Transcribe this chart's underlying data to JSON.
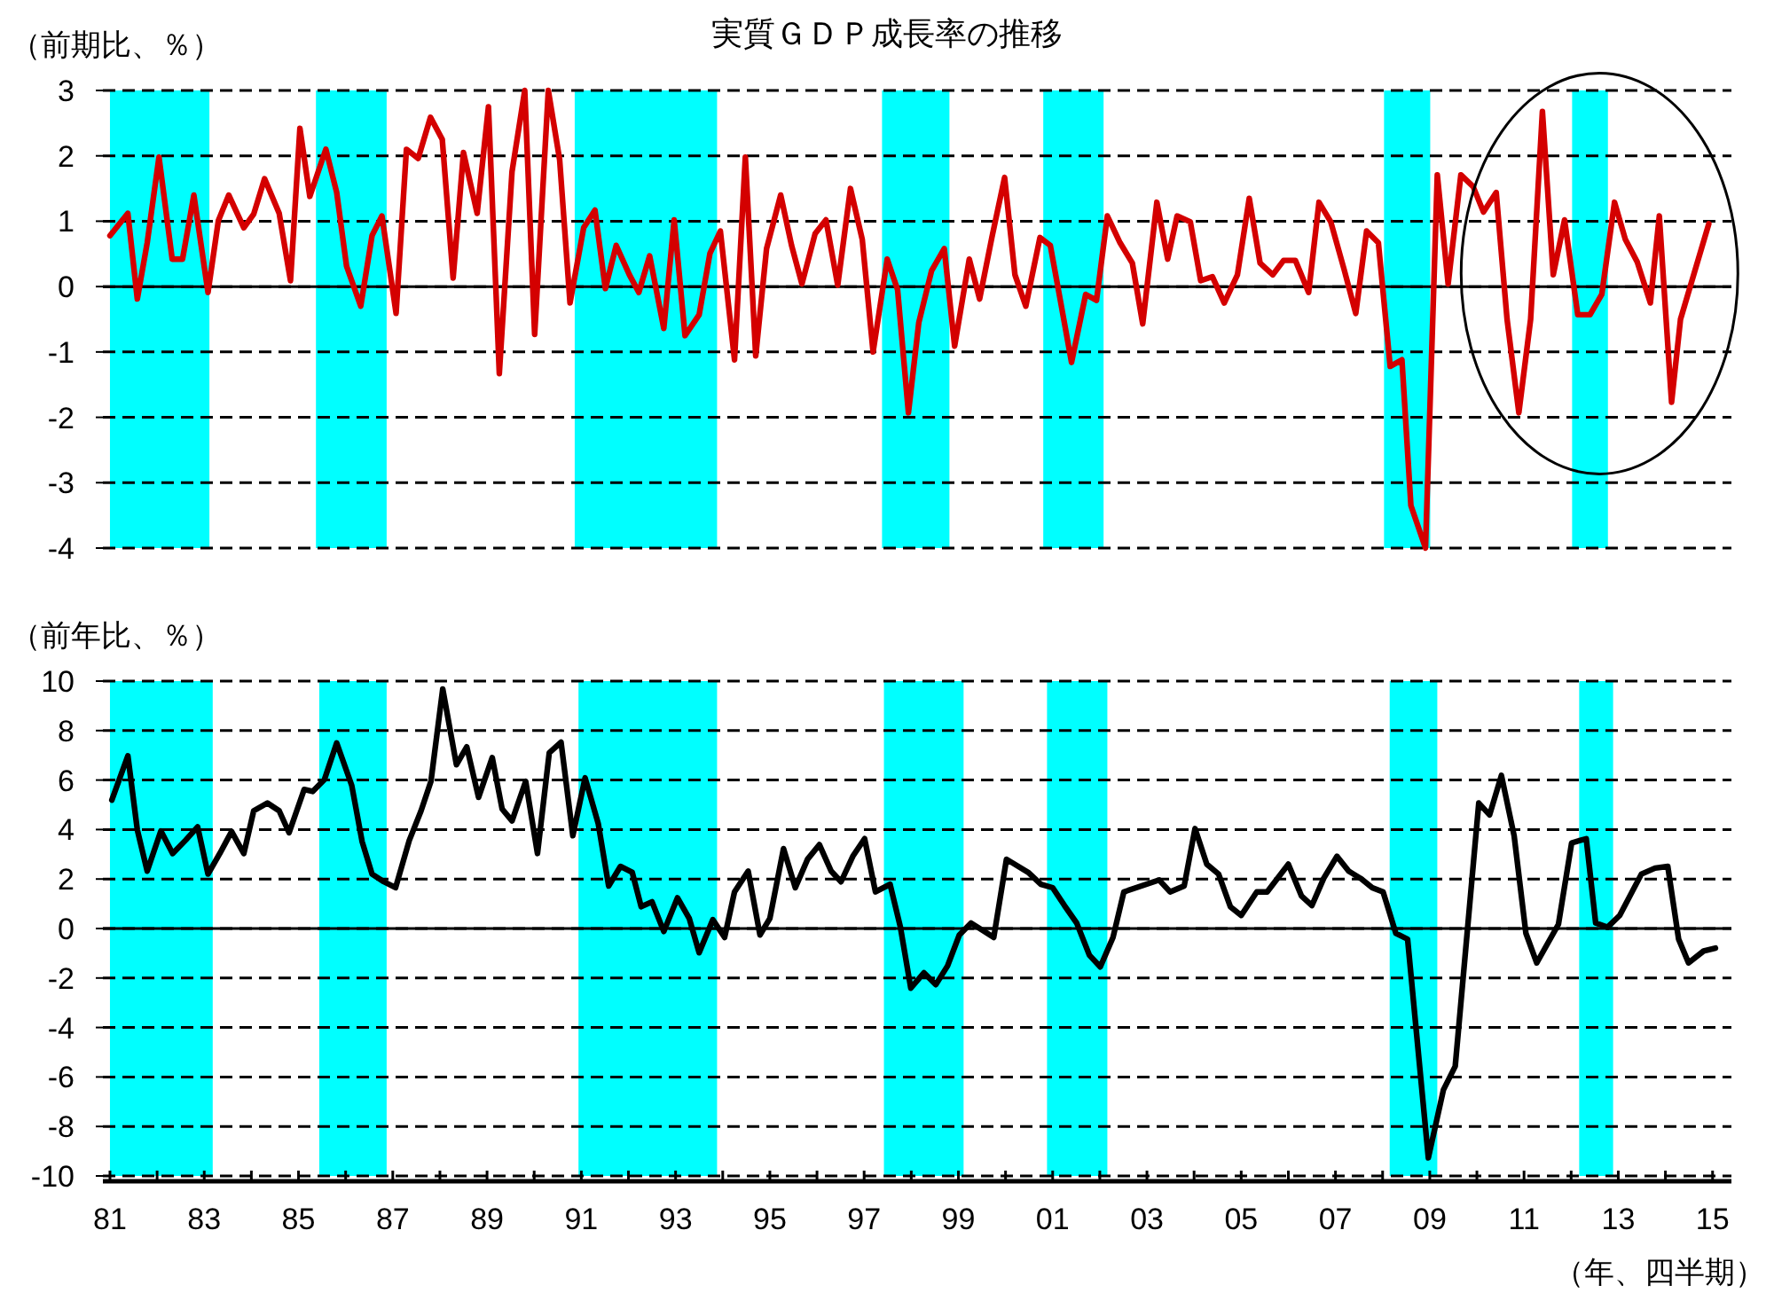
{
  "chart_data": [
    {
      "type": "line",
      "title": "実質ＧＤＰ成長率の推移",
      "ylabel": "（前期比、％）",
      "xlim": [
        1980.85,
        2015.4
      ],
      "tick_labels": "y",
      "ylim": [
        -4,
        3
      ],
      "yticks": [
        -4,
        -3,
        -2,
        -1,
        0,
        1,
        2,
        3
      ],
      "grid": "y",
      "line_style": "solid",
      "bands": [
        {
          "axis": "x",
          "from": 1981.0,
          "to": 1983.11,
          "color": "#00ffff"
        },
        {
          "axis": "x",
          "from": 1985.37,
          "to": 1986.87,
          "color": "#00ffff"
        },
        {
          "axis": "x",
          "from": 1990.86,
          "to": 1993.88,
          "color": "#00ffff"
        },
        {
          "axis": "x",
          "from": 1997.38,
          "to": 1998.81,
          "color": "#00ffff"
        },
        {
          "axis": "x",
          "from": 2000.8,
          "to": 2002.08,
          "color": "#00ffff"
        },
        {
          "axis": "x",
          "from": 2008.03,
          "to": 2009.01,
          "color": "#00ffff"
        },
        {
          "axis": "x",
          "from": 2012.02,
          "to": 2012.78,
          "color": "#00ffff"
        }
      ],
      "ref_lines": [
        {
          "axis": "y",
          "value": 0,
          "color": "#000000",
          "line_style": "solid"
        }
      ],
      "series": [
        {
          "color": "#d40000",
          "x": [
            1981.0,
            1981.38,
            1981.58,
            1981.79,
            1982.04,
            1982.32,
            1982.54,
            1982.78,
            1983.08,
            1983.3,
            1983.52,
            1983.84,
            1984.05,
            1984.28,
            1984.59,
            1984.83,
            1985.03,
            1985.24,
            1985.58,
            1985.81,
            1986.02,
            1986.32,
            1986.56,
            1986.77,
            1987.07,
            1987.29,
            1987.54,
            1987.8,
            1988.05,
            1988.28,
            1988.5,
            1988.79,
            1989.03,
            1989.26,
            1989.53,
            1989.8,
            1990.01,
            1990.3,
            1990.54,
            1990.76,
            1991.05,
            1991.29,
            1991.51,
            1991.74,
            1992.02,
            1992.22,
            1992.45,
            1992.75,
            1992.97,
            1993.2,
            1993.5,
            1993.73,
            1993.95,
            1994.25,
            1994.48,
            1994.7,
            1994.93,
            1995.23,
            1995.46,
            1995.68,
            1995.96,
            1996.19,
            1996.44,
            1996.71,
            1996.96,
            1997.19,
            1997.49,
            1997.71,
            1997.94,
            1998.16,
            1998.43,
            1998.7,
            1998.92,
            1999.23,
            1999.45,
            1999.71,
            1999.98,
            2000.2,
            2000.43,
            2000.73,
            2000.95,
            2001.18,
            2001.4,
            2001.7,
            2001.93,
            2002.16,
            2002.43,
            2002.69,
            2002.91,
            2003.21,
            2003.44,
            2003.64,
            2003.92,
            2004.14,
            2004.39,
            2004.64,
            2004.92,
            2005.17,
            2005.4,
            2005.67,
            2005.9,
            2006.15,
            2006.43,
            2006.65,
            2006.9,
            2007.18,
            2007.43,
            2007.66,
            2007.91,
            2008.16,
            2008.41,
            2008.6,
            2008.91,
            2009.16,
            2009.39,
            2009.66,
            2009.92,
            2010.14,
            2010.41,
            2010.64,
            2010.89,
            2011.14,
            2011.39,
            2011.62,
            2011.86,
            2012.14,
            2012.4,
            2012.65,
            2012.92,
            2013.15,
            2013.4,
            2013.68,
            2013.87,
            2014.13,
            2014.32,
            2014.92
          ],
          "values": [
            0.78,
            1.12,
            -0.19,
            0.67,
            1.98,
            0.42,
            0.42,
            1.4,
            -0.09,
            1.01,
            1.4,
            0.9,
            1.11,
            1.65,
            1.12,
            0.09,
            2.42,
            1.38,
            2.1,
            1.44,
            0.31,
            -0.3,
            0.78,
            1.08,
            -0.41,
            2.1,
            1.96,
            2.59,
            2.25,
            0.13,
            2.05,
            1.12,
            2.75,
            -1.33,
            1.76,
            3.0,
            -0.73,
            3.0,
            1.94,
            -0.25,
            0.9,
            1.17,
            -0.03,
            0.63,
            0.18,
            -0.09,
            0.47,
            -0.64,
            1.02,
            -0.75,
            -0.43,
            0.51,
            0.85,
            -1.12,
            1.98,
            -1.06,
            0.58,
            1.4,
            0.63,
            0.04,
            0.81,
            1.02,
            0.02,
            1.5,
            0.72,
            -1.0,
            0.42,
            -0.05,
            -1.93,
            -0.55,
            0.24,
            0.58,
            -0.91,
            0.42,
            -0.19,
            0.75,
            1.67,
            0.18,
            -0.3,
            0.75,
            0.63,
            -0.28,
            -1.16,
            -0.12,
            -0.21,
            1.08,
            0.67,
            0.36,
            -0.57,
            1.29,
            0.42,
            1.08,
            0.99,
            0.09,
            0.15,
            -0.25,
            0.18,
            1.35,
            0.36,
            0.18,
            0.4,
            0.4,
            -0.09,
            1.29,
            0.99,
            0.27,
            -0.41,
            0.85,
            0.67,
            -1.22,
            -1.12,
            -3.35,
            -4.0,
            1.71,
            0.04,
            1.71,
            1.53,
            1.14,
            1.44,
            -0.5,
            -1.93,
            -0.5,
            2.68,
            0.18,
            1.02,
            -0.43,
            -0.43,
            -0.12,
            1.29,
            0.72,
            0.38,
            -0.25,
            1.08,
            -1.77,
            -0.5,
            0.96
          ]
        }
      ]
    },
    {
      "type": "line",
      "ylabel": "（前年比、％）",
      "xlabel": "（年、四半期）",
      "xlim": [
        1980.85,
        2015.4
      ],
      "xticks": [
        {
          "value": 1981,
          "label": "81"
        },
        {
          "value": 1982,
          "label": null
        },
        {
          "value": 1983,
          "label": "83"
        },
        {
          "value": 1984,
          "label": null
        },
        {
          "value": 1985,
          "label": "85"
        },
        {
          "value": 1986,
          "label": null
        },
        {
          "value": 1987,
          "label": "87"
        },
        {
          "value": 1988,
          "label": null
        },
        {
          "value": 1989,
          "label": "89"
        },
        {
          "value": 1990,
          "label": null
        },
        {
          "value": 1991,
          "label": "91"
        },
        {
          "value": 1992,
          "label": null
        },
        {
          "value": 1993,
          "label": "93"
        },
        {
          "value": 1994,
          "label": null
        },
        {
          "value": 1995,
          "label": "95"
        },
        {
          "value": 1996,
          "label": null
        },
        {
          "value": 1997,
          "label": "97"
        },
        {
          "value": 1998,
          "label": null
        },
        {
          "value": 1999,
          "label": "99"
        },
        {
          "value": 2000,
          "label": null
        },
        {
          "value": 2001,
          "label": "01"
        },
        {
          "value": 2002,
          "label": null
        },
        {
          "value": 2003,
          "label": "03"
        },
        {
          "value": 2004,
          "label": null
        },
        {
          "value": 2005,
          "label": "05"
        },
        {
          "value": 2006,
          "label": null
        },
        {
          "value": 2007,
          "label": "07"
        },
        {
          "value": 2008,
          "label": null
        },
        {
          "value": 2009,
          "label": "09"
        },
        {
          "value": 2010,
          "label": null
        },
        {
          "value": 2011,
          "label": "11"
        },
        {
          "value": 2012,
          "label": null
        },
        {
          "value": 2013,
          "label": "13"
        },
        {
          "value": 2014,
          "label": null
        },
        {
          "value": 2015,
          "label": "15"
        }
      ],
      "ylim": [
        -10,
        10
      ],
      "yticks": [
        -10,
        -8,
        -6,
        -4,
        -2,
        0,
        2,
        4,
        6,
        8,
        10
      ],
      "grid": "y",
      "line_style": "solid",
      "bands": [
        {
          "axis": "x",
          "from": 1981.0,
          "to": 1983.18,
          "color": "#00ffff"
        },
        {
          "axis": "x",
          "from": 1985.44,
          "to": 1986.87,
          "color": "#00ffff"
        },
        {
          "axis": "x",
          "from": 1990.94,
          "to": 1993.88,
          "color": "#00ffff"
        },
        {
          "axis": "x",
          "from": 1997.42,
          "to": 1999.11,
          "color": "#00ffff"
        },
        {
          "axis": "x",
          "from": 2000.88,
          "to": 2002.16,
          "color": "#00ffff"
        },
        {
          "axis": "x",
          "from": 2008.15,
          "to": 2009.16,
          "color": "#00ffff"
        },
        {
          "axis": "x",
          "from": 2012.17,
          "to": 2012.89,
          "color": "#00ffff"
        }
      ],
      "ref_lines": [
        {
          "axis": "y",
          "value": 0,
          "color": "#000000",
          "line_style": "solid"
        }
      ],
      "series": [
        {
          "color": "#000000",
          "x": [
            1981.04,
            1981.38,
            1981.58,
            1981.79,
            1982.08,
            1982.33,
            1982.61,
            1982.86,
            1983.08,
            1983.33,
            1983.58,
            1983.84,
            1984.05,
            1984.34,
            1984.59,
            1984.8,
            1985.12,
            1985.3,
            1985.55,
            1985.81,
            1986.13,
            1986.35,
            1986.56,
            1986.81,
            1987.06,
            1987.35,
            1987.6,
            1987.81,
            1988.06,
            1988.35,
            1988.57,
            1988.82,
            1989.11,
            1989.32,
            1989.53,
            1989.82,
            1990.07,
            1990.32,
            1990.57,
            1990.82,
            1991.08,
            1991.36,
            1991.58,
            1991.83,
            1992.08,
            1992.27,
            1992.5,
            1992.75,
            1993.04,
            1993.29,
            1993.5,
            1993.79,
            1994.04,
            1994.25,
            1994.54,
            1994.79,
            1995.0,
            1995.29,
            1995.54,
            1995.8,
            1996.05,
            1996.3,
            1996.51,
            1996.76,
            1997.01,
            1997.24,
            1997.55,
            1997.77,
            1997.99,
            1998.27,
            1998.52,
            1998.77,
            1999.02,
            1999.27,
            1999.75,
            2000.02,
            2000.48,
            2000.75,
            2001.0,
            2001.25,
            2001.51,
            2001.78,
            2002.01,
            2002.28,
            2002.51,
            2003.26,
            2003.49,
            2003.79,
            2004.02,
            2004.27,
            2004.52,
            2004.77,
            2005.0,
            2005.33,
            2005.55,
            2006.0,
            2006.28,
            2006.5,
            2006.75,
            2007.03,
            2007.28,
            2007.53,
            2007.78,
            2008.01,
            2008.28,
            2008.53,
            2008.97,
            2009.29,
            2009.54,
            2010.04,
            2010.27,
            2010.52,
            2010.79,
            2011.04,
            2011.27,
            2011.73,
            2012.01,
            2012.32,
            2012.52,
            2012.77,
            2013.03,
            2013.49,
            2013.78,
            2014.05,
            2014.28,
            2014.49,
            2014.81,
            2015.06
          ],
          "values": [
            5.19,
            6.98,
            3.99,
            2.32,
            3.94,
            3.03,
            3.58,
            4.11,
            2.2,
            3.03,
            3.92,
            3.03,
            4.76,
            5.07,
            4.76,
            3.87,
            5.62,
            5.54,
            6.02,
            7.5,
            5.78,
            3.51,
            2.2,
            1.89,
            1.65,
            3.56,
            4.76,
            5.95,
            9.68,
            6.62,
            7.34,
            5.3,
            6.91,
            4.83,
            4.35,
            5.95,
            3.03,
            7.1,
            7.53,
            3.75,
            6.09,
            4.23,
            1.72,
            2.51,
            2.27,
            0.88,
            1.08,
            -0.12,
            1.24,
            0.41,
            -0.98,
            0.36,
            -0.36,
            1.48,
            2.32,
            -0.26,
            0.41,
            3.23,
            1.65,
            2.8,
            3.39,
            2.32,
            1.89,
            2.92,
            3.63,
            1.48,
            1.79,
            0.05,
            -2.41,
            -1.79,
            -2.27,
            -1.51,
            -0.26,
            0.22,
            -0.36,
            2.8,
            2.27,
            1.79,
            1.65,
            0.93,
            0.22,
            -1.08,
            -1.55,
            -0.36,
            1.48,
            1.96,
            1.48,
            1.72,
            4.04,
            2.6,
            2.2,
            0.88,
            0.53,
            1.48,
            1.48,
            2.6,
            1.31,
            0.93,
            2.03,
            2.92,
            2.32,
            2.03,
            1.65,
            1.48,
            -0.19,
            -0.43,
            -9.27,
            -6.52,
            -5.57,
            5.07,
            4.59,
            6.19,
            3.75,
            -0.19,
            -1.39,
            0.17,
            3.46,
            3.63,
            0.22,
            0.05,
            0.53,
            2.2,
            2.44,
            2.51,
            -0.43,
            -1.39,
            -0.91,
            -0.79
          ]
        }
      ]
    }
  ]
}
